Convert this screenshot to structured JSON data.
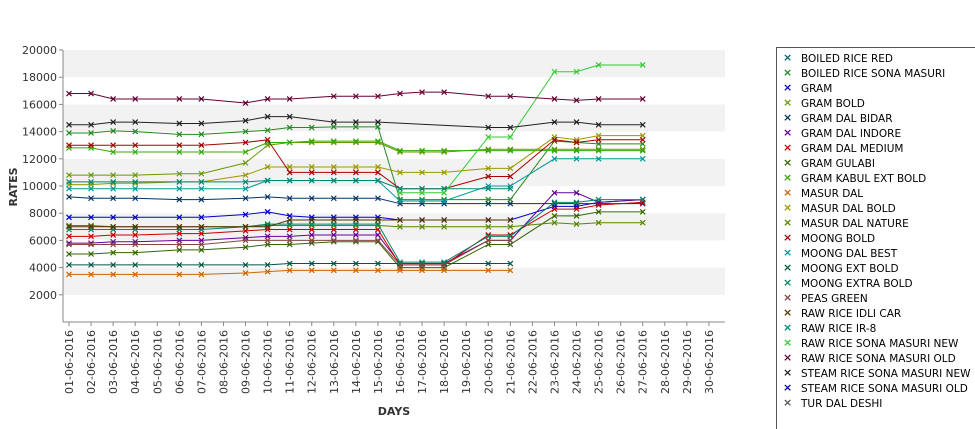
{
  "chart_data": {
    "type": "line",
    "xlabel": "DAYS",
    "ylabel": "RATES",
    "ylim": [
      0,
      20000
    ],
    "yticks": [
      2000,
      4000,
      6000,
      8000,
      10000,
      12000,
      14000,
      16000,
      18000,
      20000
    ],
    "grid": "alternating horizontal bands",
    "legend_position": "right",
    "categories": [
      "01-06-2016",
      "02-06-2016",
      "03-06-2016",
      "04-06-2016",
      "05-06-2016",
      "06-06-2016",
      "07-06-2016",
      "08-06-2016",
      "09-06-2016",
      "10-06-2016",
      "11-06-2016",
      "12-06-2016",
      "13-06-2016",
      "14-06-2016",
      "15-06-2016",
      "16-06-2016",
      "17-06-2016",
      "18-06-2016",
      "19-06-2016",
      "20-06-2016",
      "21-06-2016",
      "22-06-2016",
      "23-06-2016",
      "24-06-2016",
      "25-06-2016",
      "26-06-2016",
      "27-06-2016",
      "28-06-2016",
      "29-06-2016",
      "30-06-2016"
    ],
    "series": [
      {
        "name": "BOILED RICE RED",
        "color": "#006666",
        "values": [
          null,
          null,
          null,
          null,
          null,
          null,
          null,
          null,
          null,
          null,
          null,
          null,
          null,
          null,
          null,
          null,
          null,
          null,
          null,
          null,
          null,
          null,
          null,
          null,
          null,
          null,
          null,
          null,
          null,
          null
        ]
      },
      {
        "name": "BOILED RICE SONA MASURI",
        "color": "#228b22",
        "values": [
          13900,
          13900,
          14050,
          14000,
          null,
          13800,
          13800,
          null,
          14000,
          14100,
          14300,
          14300,
          14350,
          14350,
          14350,
          9000,
          9000,
          9000,
          null,
          9000,
          9000,
          null,
          13300,
          13200,
          13100,
          null,
          13100,
          null,
          null,
          null
        ]
      },
      {
        "name": "GRAM",
        "color": "#0000cc",
        "values": [
          7700,
          7700,
          7700,
          7700,
          null,
          7700,
          7700,
          null,
          7900,
          8100,
          7800,
          7700,
          7700,
          7700,
          7700,
          7500,
          7500,
          7500,
          null,
          7500,
          7500,
          null,
          8500,
          8500,
          8800,
          null,
          9000,
          null,
          null,
          null
        ]
      },
      {
        "name": "GRAM BOLD",
        "color": "#669900",
        "values": [
          10800,
          10800,
          10800,
          10800,
          null,
          10900,
          10900,
          null,
          11700,
          13000,
          13200,
          13200,
          13200,
          13200,
          13200,
          12500,
          12500,
          12500,
          null,
          12700,
          12700,
          null,
          12700,
          12700,
          12700,
          null,
          12700,
          null,
          null,
          null
        ]
      },
      {
        "name": "GRAM DAL BIDAR",
        "color": "#003366",
        "values": [
          9200,
          9100,
          9100,
          9100,
          null,
          9000,
          9000,
          null,
          9100,
          9200,
          9100,
          9100,
          9100,
          9100,
          9100,
          8700,
          8700,
          8700,
          null,
          8700,
          8700,
          null,
          8700,
          8700,
          8700,
          null,
          8700,
          null,
          null,
          null
        ]
      },
      {
        "name": "GRAM DAL INDORE",
        "color": "#660099",
        "values": [
          5800,
          5800,
          5900,
          5900,
          null,
          6000,
          6000,
          null,
          6200,
          6300,
          6300,
          6400,
          6400,
          6400,
          6400,
          4300,
          4300,
          4300,
          null,
          6000,
          6000,
          null,
          9500,
          9500,
          8800,
          null,
          9000,
          null,
          null,
          null
        ]
      },
      {
        "name": "GRAM DAL MEDIUM",
        "color": "#cc0000",
        "values": [
          6300,
          6300,
          6400,
          6400,
          null,
          6500,
          6500,
          null,
          6700,
          6800,
          6800,
          6800,
          6800,
          6800,
          6800,
          4200,
          4200,
          4200,
          null,
          6400,
          6400,
          null,
          8300,
          8300,
          8600,
          null,
          8800,
          null,
          null,
          null
        ]
      },
      {
        "name": "GRAM GULABI",
        "color": "#336600",
        "values": [
          5000,
          5000,
          5100,
          5100,
          null,
          5300,
          5300,
          null,
          5500,
          5700,
          5700,
          5800,
          5900,
          5900,
          5900,
          4000,
          4000,
          4000,
          null,
          5700,
          5700,
          null,
          7800,
          7800,
          8100,
          null,
          8100,
          null,
          null,
          null
        ]
      },
      {
        "name": "GRAM KABUL EXT BOLD",
        "color": "#33aa00",
        "values": [
          12800,
          12800,
          12500,
          12500,
          null,
          12500,
          12500,
          null,
          12500,
          13200,
          13200,
          13300,
          13300,
          13300,
          13300,
          12600,
          12600,
          12600,
          null,
          12600,
          12600,
          null,
          12600,
          12600,
          12600,
          null,
          12600,
          null,
          null,
          null
        ]
      },
      {
        "name": "MASUR DAL",
        "color": "#cc6600",
        "values": [
          3500,
          3500,
          3500,
          3500,
          null,
          3500,
          3500,
          null,
          3600,
          3700,
          3800,
          3800,
          3800,
          3800,
          3800,
          3800,
          3800,
          3800,
          null,
          3800,
          3800,
          null,
          null,
          null,
          null,
          null,
          null,
          null,
          null,
          null
        ]
      },
      {
        "name": "MASUR DAL BOLD",
        "color": "#999900",
        "values": [
          10100,
          10100,
          10200,
          10200,
          null,
          10300,
          10300,
          null,
          10800,
          11400,
          11400,
          11400,
          11400,
          11400,
          11400,
          11000,
          11000,
          11000,
          null,
          11300,
          11300,
          null,
          13600,
          13400,
          13700,
          null,
          13700,
          null,
          null,
          null
        ]
      },
      {
        "name": "MASUR DAL NATURE",
        "color": "#558800",
        "values": [
          7100,
          7100,
          7000,
          7000,
          null,
          7000,
          7000,
          null,
          7000,
          7100,
          7100,
          7100,
          7100,
          7100,
          7100,
          7000,
          7000,
          7000,
          null,
          7000,
          7000,
          null,
          7300,
          7200,
          7300,
          null,
          7300,
          null,
          null,
          null
        ]
      },
      {
        "name": "MOONG BOLD",
        "color": "#aa0000",
        "values": [
          13000,
          13000,
          13000,
          13000,
          null,
          13000,
          13000,
          null,
          13200,
          13400,
          11000,
          11000,
          11000,
          11000,
          11000,
          9800,
          9800,
          9800,
          null,
          10700,
          10700,
          null,
          13400,
          13200,
          13400,
          null,
          13400,
          null,
          null,
          null
        ]
      },
      {
        "name": "MOONG DAL BEST",
        "color": "#009999",
        "values": [
          9800,
          9800,
          9800,
          9800,
          null,
          9800,
          9800,
          null,
          9800,
          10400,
          10400,
          10400,
          10400,
          10400,
          10400,
          8900,
          8900,
          8900,
          null,
          10000,
          10000,
          null,
          12000,
          12000,
          12000,
          null,
          12000,
          null,
          null,
          null
        ]
      },
      {
        "name": "MOONG EXT BOLD",
        "color": "#005544",
        "values": [
          4200,
          4200,
          4200,
          4200,
          null,
          4200,
          4200,
          null,
          4200,
          4200,
          4300,
          4300,
          4300,
          4300,
          4300,
          4300,
          4300,
          4300,
          null,
          4300,
          4300,
          null,
          null,
          null,
          null,
          null,
          null,
          null,
          null,
          null
        ]
      },
      {
        "name": "MOONG EXTRA BOLD",
        "color": "#008866",
        "values": [
          6800,
          6800,
          6800,
          6800,
          null,
          6800,
          6800,
          null,
          7000,
          7200,
          7200,
          7200,
          7200,
          7200,
          7200,
          4400,
          4400,
          4400,
          null,
          6300,
          6300,
          null,
          8800,
          8800,
          9000,
          null,
          9000,
          null,
          null,
          null
        ]
      },
      {
        "name": "PEAS GREEN",
        "color": "#884444",
        "values": [
          5700,
          5700,
          5700,
          5700,
          null,
          5700,
          5700,
          null,
          6000,
          6000,
          6000,
          6000,
          6000,
          6000,
          6000,
          4200,
          4200,
          4200,
          null,
          6000,
          6000,
          null,
          null,
          null,
          null,
          null,
          null,
          null,
          null,
          null
        ]
      },
      {
        "name": "RAW RICE IDLI CAR",
        "color": "#553300",
        "values": [
          7000,
          7000,
          7000,
          7000,
          null,
          7000,
          7000,
          null,
          7000,
          7000,
          7500,
          7500,
          7500,
          7500,
          7500,
          7500,
          7500,
          7500,
          null,
          7500,
          7500,
          null,
          null,
          null,
          null,
          null,
          null,
          null,
          null,
          null
        ]
      },
      {
        "name": "RAW RICE IR-8",
        "color": "#008877",
        "values": [
          10300,
          10300,
          10300,
          10300,
          null,
          10300,
          10300,
          null,
          10300,
          10400,
          10400,
          10400,
          10400,
          10400,
          10400,
          9800,
          9800,
          9800,
          null,
          9800,
          9800,
          null,
          null,
          null,
          null,
          null,
          null,
          null,
          null,
          null
        ]
      },
      {
        "name": "RAW RICE SONA MASURI NEW",
        "color": "#33cc33",
        "values": [
          null,
          null,
          null,
          null,
          null,
          null,
          null,
          null,
          null,
          null,
          null,
          null,
          null,
          null,
          null,
          9500,
          9500,
          9500,
          null,
          13600,
          13600,
          null,
          18400,
          18400,
          18900,
          null,
          18900,
          null,
          null,
          null
        ]
      },
      {
        "name": "RAW RICE SONA MASURI OLD",
        "color": "#660033",
        "values": [
          16800,
          16800,
          16400,
          16400,
          null,
          16400,
          16400,
          null,
          16100,
          16400,
          16400,
          null,
          16600,
          16600,
          16600,
          16800,
          16900,
          16900,
          null,
          16600,
          16600,
          null,
          16400,
          16300,
          16400,
          null,
          16400,
          null,
          null,
          null
        ]
      },
      {
        "name": "STEAM RICE SONA MASURI NEW",
        "color": "#222222",
        "values": [
          14500,
          14500,
          14700,
          14700,
          null,
          14600,
          14600,
          null,
          14800,
          15100,
          15100,
          null,
          14700,
          14700,
          14700,
          null,
          null,
          null,
          null,
          14300,
          14300,
          null,
          14700,
          14700,
          14500,
          null,
          14500,
          null,
          null,
          null
        ]
      },
      {
        "name": "STEAM RICE SONA MASURI OLD",
        "color": "#0000aa",
        "values": [
          null,
          null,
          null,
          null,
          null,
          null,
          null,
          null,
          null,
          null,
          null,
          null,
          null,
          null,
          null,
          null,
          null,
          null,
          null,
          null,
          null,
          null,
          null,
          null,
          null,
          null,
          null,
          null,
          null,
          null
        ]
      },
      {
        "name": "TUR DAL DESHI",
        "color": "#555555",
        "values": [
          null,
          null,
          null,
          null,
          null,
          null,
          null,
          null,
          null,
          null,
          null,
          null,
          null,
          null,
          null,
          null,
          null,
          null,
          null,
          null,
          null,
          null,
          null,
          null,
          null,
          null,
          null,
          null,
          null,
          null
        ]
      }
    ]
  }
}
